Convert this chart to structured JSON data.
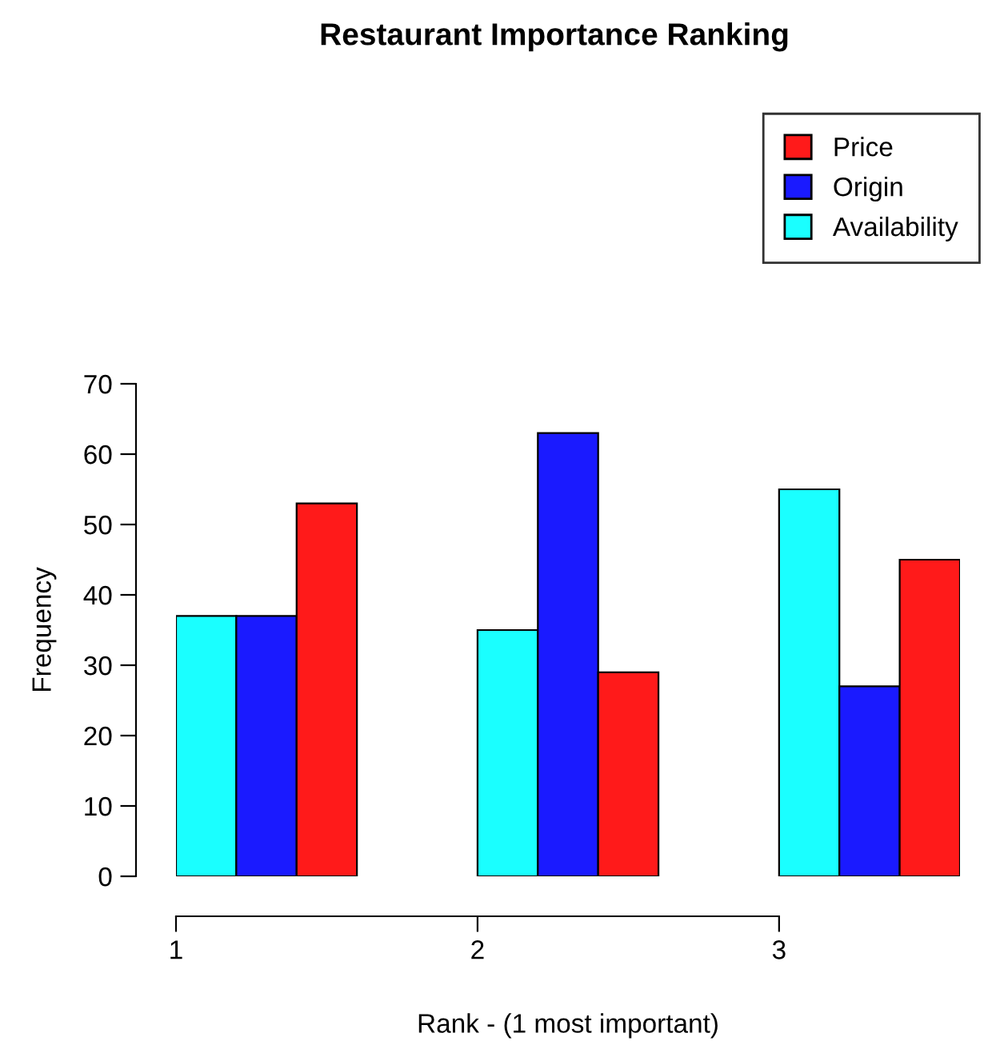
{
  "chart_data": {
    "type": "bar",
    "title": "Restaurant Importance Ranking",
    "xlabel": "Rank - (1 most important)",
    "ylabel": "Frequency",
    "categories": [
      "1",
      "2",
      "3"
    ],
    "series": [
      {
        "name": "Availability",
        "color": "#1affff",
        "values": [
          37,
          35,
          55
        ]
      },
      {
        "name": "Origin",
        "color": "#1a1aff",
        "values": [
          37,
          63,
          27
        ]
      },
      {
        "name": "Price",
        "color": "#ff1a1a",
        "values": [
          53,
          29,
          45
        ]
      }
    ],
    "ylim": [
      0,
      70
    ],
    "yticks": [
      0,
      10,
      20,
      30,
      40,
      50,
      60,
      70
    ],
    "grid": false,
    "legend": "top right"
  }
}
